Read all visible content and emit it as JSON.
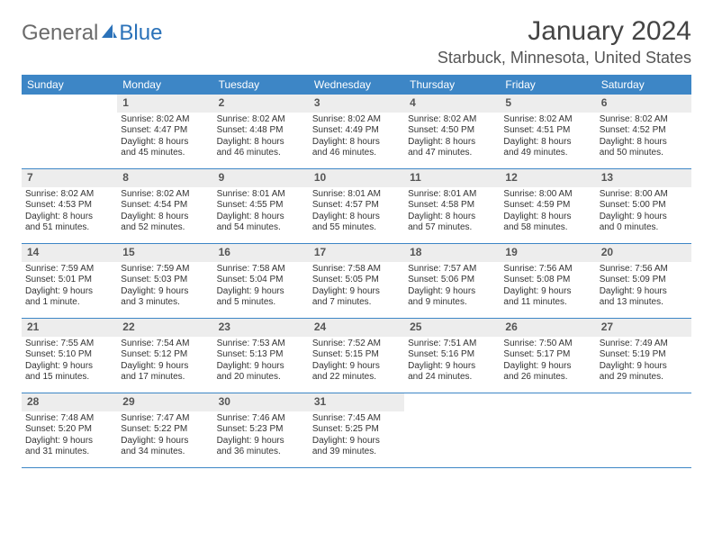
{
  "brand": {
    "part1": "General",
    "part2": "Blue"
  },
  "title": "January 2024",
  "location": "Starbuck, Minnesota, United States",
  "colors": {
    "header_bg": "#3d86c6",
    "header_text": "#ffffff",
    "daynum_bg": "#ededed",
    "row_border": "#3d86c6",
    "text": "#333333",
    "title_text": "#444444",
    "brand_gray": "#6b6b6b",
    "brand_blue": "#2b72b9",
    "background": "#ffffff"
  },
  "typography": {
    "title_fontsize": 30,
    "location_fontsize": 18,
    "dow_fontsize": 12,
    "daynum_fontsize": 12,
    "body_fontsize": 10,
    "logo_fontsize": 24
  },
  "days_of_week": [
    "Sunday",
    "Monday",
    "Tuesday",
    "Wednesday",
    "Thursday",
    "Friday",
    "Saturday"
  ],
  "weeks": [
    [
      null,
      {
        "n": "1",
        "sr": "Sunrise: 8:02 AM",
        "ss": "Sunset: 4:47 PM",
        "d1": "Daylight: 8 hours",
        "d2": "and 45 minutes."
      },
      {
        "n": "2",
        "sr": "Sunrise: 8:02 AM",
        "ss": "Sunset: 4:48 PM",
        "d1": "Daylight: 8 hours",
        "d2": "and 46 minutes."
      },
      {
        "n": "3",
        "sr": "Sunrise: 8:02 AM",
        "ss": "Sunset: 4:49 PM",
        "d1": "Daylight: 8 hours",
        "d2": "and 46 minutes."
      },
      {
        "n": "4",
        "sr": "Sunrise: 8:02 AM",
        "ss": "Sunset: 4:50 PM",
        "d1": "Daylight: 8 hours",
        "d2": "and 47 minutes."
      },
      {
        "n": "5",
        "sr": "Sunrise: 8:02 AM",
        "ss": "Sunset: 4:51 PM",
        "d1": "Daylight: 8 hours",
        "d2": "and 49 minutes."
      },
      {
        "n": "6",
        "sr": "Sunrise: 8:02 AM",
        "ss": "Sunset: 4:52 PM",
        "d1": "Daylight: 8 hours",
        "d2": "and 50 minutes."
      }
    ],
    [
      {
        "n": "7",
        "sr": "Sunrise: 8:02 AM",
        "ss": "Sunset: 4:53 PM",
        "d1": "Daylight: 8 hours",
        "d2": "and 51 minutes."
      },
      {
        "n": "8",
        "sr": "Sunrise: 8:02 AM",
        "ss": "Sunset: 4:54 PM",
        "d1": "Daylight: 8 hours",
        "d2": "and 52 minutes."
      },
      {
        "n": "9",
        "sr": "Sunrise: 8:01 AM",
        "ss": "Sunset: 4:55 PM",
        "d1": "Daylight: 8 hours",
        "d2": "and 54 minutes."
      },
      {
        "n": "10",
        "sr": "Sunrise: 8:01 AM",
        "ss": "Sunset: 4:57 PM",
        "d1": "Daylight: 8 hours",
        "d2": "and 55 minutes."
      },
      {
        "n": "11",
        "sr": "Sunrise: 8:01 AM",
        "ss": "Sunset: 4:58 PM",
        "d1": "Daylight: 8 hours",
        "d2": "and 57 minutes."
      },
      {
        "n": "12",
        "sr": "Sunrise: 8:00 AM",
        "ss": "Sunset: 4:59 PM",
        "d1": "Daylight: 8 hours",
        "d2": "and 58 minutes."
      },
      {
        "n": "13",
        "sr": "Sunrise: 8:00 AM",
        "ss": "Sunset: 5:00 PM",
        "d1": "Daylight: 9 hours",
        "d2": "and 0 minutes."
      }
    ],
    [
      {
        "n": "14",
        "sr": "Sunrise: 7:59 AM",
        "ss": "Sunset: 5:01 PM",
        "d1": "Daylight: 9 hours",
        "d2": "and 1 minute."
      },
      {
        "n": "15",
        "sr": "Sunrise: 7:59 AM",
        "ss": "Sunset: 5:03 PM",
        "d1": "Daylight: 9 hours",
        "d2": "and 3 minutes."
      },
      {
        "n": "16",
        "sr": "Sunrise: 7:58 AM",
        "ss": "Sunset: 5:04 PM",
        "d1": "Daylight: 9 hours",
        "d2": "and 5 minutes."
      },
      {
        "n": "17",
        "sr": "Sunrise: 7:58 AM",
        "ss": "Sunset: 5:05 PM",
        "d1": "Daylight: 9 hours",
        "d2": "and 7 minutes."
      },
      {
        "n": "18",
        "sr": "Sunrise: 7:57 AM",
        "ss": "Sunset: 5:06 PM",
        "d1": "Daylight: 9 hours",
        "d2": "and 9 minutes."
      },
      {
        "n": "19",
        "sr": "Sunrise: 7:56 AM",
        "ss": "Sunset: 5:08 PM",
        "d1": "Daylight: 9 hours",
        "d2": "and 11 minutes."
      },
      {
        "n": "20",
        "sr": "Sunrise: 7:56 AM",
        "ss": "Sunset: 5:09 PM",
        "d1": "Daylight: 9 hours",
        "d2": "and 13 minutes."
      }
    ],
    [
      {
        "n": "21",
        "sr": "Sunrise: 7:55 AM",
        "ss": "Sunset: 5:10 PM",
        "d1": "Daylight: 9 hours",
        "d2": "and 15 minutes."
      },
      {
        "n": "22",
        "sr": "Sunrise: 7:54 AM",
        "ss": "Sunset: 5:12 PM",
        "d1": "Daylight: 9 hours",
        "d2": "and 17 minutes."
      },
      {
        "n": "23",
        "sr": "Sunrise: 7:53 AM",
        "ss": "Sunset: 5:13 PM",
        "d1": "Daylight: 9 hours",
        "d2": "and 20 minutes."
      },
      {
        "n": "24",
        "sr": "Sunrise: 7:52 AM",
        "ss": "Sunset: 5:15 PM",
        "d1": "Daylight: 9 hours",
        "d2": "and 22 minutes."
      },
      {
        "n": "25",
        "sr": "Sunrise: 7:51 AM",
        "ss": "Sunset: 5:16 PM",
        "d1": "Daylight: 9 hours",
        "d2": "and 24 minutes."
      },
      {
        "n": "26",
        "sr": "Sunrise: 7:50 AM",
        "ss": "Sunset: 5:17 PM",
        "d1": "Daylight: 9 hours",
        "d2": "and 26 minutes."
      },
      {
        "n": "27",
        "sr": "Sunrise: 7:49 AM",
        "ss": "Sunset: 5:19 PM",
        "d1": "Daylight: 9 hours",
        "d2": "and 29 minutes."
      }
    ],
    [
      {
        "n": "28",
        "sr": "Sunrise: 7:48 AM",
        "ss": "Sunset: 5:20 PM",
        "d1": "Daylight: 9 hours",
        "d2": "and 31 minutes."
      },
      {
        "n": "29",
        "sr": "Sunrise: 7:47 AM",
        "ss": "Sunset: 5:22 PM",
        "d1": "Daylight: 9 hours",
        "d2": "and 34 minutes."
      },
      {
        "n": "30",
        "sr": "Sunrise: 7:46 AM",
        "ss": "Sunset: 5:23 PM",
        "d1": "Daylight: 9 hours",
        "d2": "and 36 minutes."
      },
      {
        "n": "31",
        "sr": "Sunrise: 7:45 AM",
        "ss": "Sunset: 5:25 PM",
        "d1": "Daylight: 9 hours",
        "d2": "and 39 minutes."
      },
      null,
      null,
      null
    ]
  ]
}
